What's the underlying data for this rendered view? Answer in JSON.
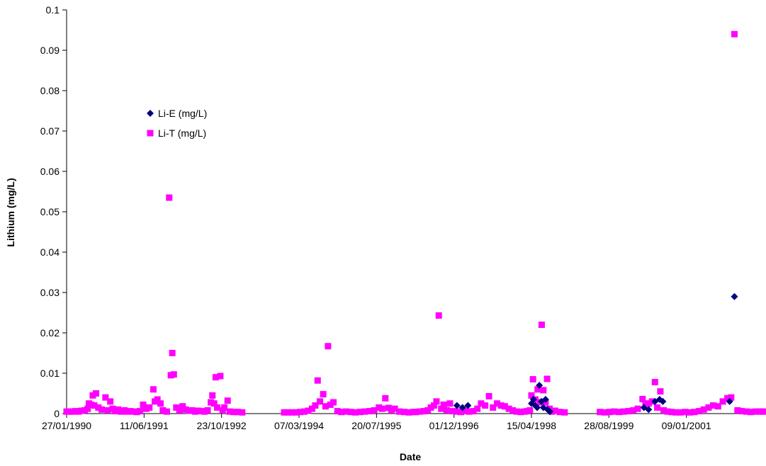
{
  "chart_data": {
    "type": "scatter",
    "title": "",
    "xlabel": "Date",
    "ylabel": "Lithium (mg/L)",
    "x_tick_labels": [
      "27/01/1990",
      "11/06/1991",
      "23/10/1992",
      "07/03/1994",
      "20/07/1995",
      "01/12/1996",
      "15/04/1998",
      "28/08/1999",
      "09/01/2001"
    ],
    "x_ticks": [
      "1990-01-27",
      "1991-06-11",
      "1992-10-23",
      "1994-03-07",
      "1995-07-20",
      "1996-12-01",
      "1998-04-15",
      "1999-08-28",
      "2001-01-09"
    ],
    "xlim": [
      "1990-01-27",
      "2002-05-24"
    ],
    "y_tick_labels": [
      "0",
      "0.01",
      "0.02",
      "0.03",
      "0.04",
      "0.05",
      "0.06",
      "0.07",
      "0.08",
      "0.09",
      "0.1"
    ],
    "ylim": [
      0,
      0.1
    ],
    "grid": false,
    "legend_position": "upper-left-inside",
    "series": [
      {
        "name": "Li-E (mg/L)",
        "color": "#000080",
        "marker": "diamond",
        "points": [
          [
            "1996-12-20",
            0.002
          ],
          [
            "1997-01-25",
            0.0015
          ],
          [
            "1997-03-01",
            0.002
          ],
          [
            "1998-04-15",
            0.0025
          ],
          [
            "1998-04-28",
            0.0035
          ],
          [
            "1998-05-10",
            0.002
          ],
          [
            "1998-05-22",
            0.0015
          ],
          [
            "1998-06-05",
            0.007
          ],
          [
            "1998-06-18",
            0.003
          ],
          [
            "1998-07-01",
            0.0015
          ],
          [
            "1998-07-15",
            0.0035
          ],
          [
            "1998-07-28",
            0.001
          ],
          [
            "1998-08-12",
            0.0005
          ],
          [
            "2000-04-10",
            0.0015
          ],
          [
            "2000-05-10",
            0.001
          ],
          [
            "2000-06-20",
            0.003
          ],
          [
            "2000-07-20",
            0.0035
          ],
          [
            "2000-08-10",
            0.003
          ],
          [
            "2001-10-15",
            0.003
          ],
          [
            "2001-11-15",
            0.029
          ]
        ]
      },
      {
        "name": "Li-T (mg/L)",
        "color": "#FF00FF",
        "marker": "square",
        "points": [
          [
            "1990-01-27",
            0.0005
          ],
          [
            "1990-02-15",
            0.0005
          ],
          [
            "1990-03-07",
            0.0005
          ],
          [
            "1990-03-26",
            0.0006
          ],
          [
            "1990-04-15",
            0.0005
          ],
          [
            "1990-05-04",
            0.0007
          ],
          [
            "1990-05-24",
            0.0008
          ],
          [
            "1990-06-12",
            0.0012
          ],
          [
            "1990-06-20",
            0.0025
          ],
          [
            "1990-07-05",
            0.0022
          ],
          [
            "1990-07-15",
            0.0045
          ],
          [
            "1990-07-25",
            0.002
          ],
          [
            "1990-08-05",
            0.005
          ],
          [
            "1990-08-20",
            0.0015
          ],
          [
            "1990-09-10",
            0.001
          ],
          [
            "1990-10-05",
            0.004
          ],
          [
            "1990-10-20",
            0.0008
          ],
          [
            "1990-11-05",
            0.003
          ],
          [
            "1990-11-20",
            0.0012
          ],
          [
            "1990-12-05",
            0.0006
          ],
          [
            "1990-12-25",
            0.001
          ],
          [
            "1991-01-15",
            0.0005
          ],
          [
            "1991-02-05",
            0.0008
          ],
          [
            "1991-02-25",
            0.0005
          ],
          [
            "1991-03-15",
            0.0006
          ],
          [
            "1991-04-05",
            0.0005
          ],
          [
            "1991-04-25",
            0.0004
          ],
          [
            "1991-05-15",
            0.0006
          ],
          [
            "1991-06-05",
            0.0022
          ],
          [
            "1991-06-25",
            0.0012
          ],
          [
            "1991-07-15",
            0.0015
          ],
          [
            "1991-08-10",
            0.006
          ],
          [
            "1991-08-20",
            0.003
          ],
          [
            "1991-09-05",
            0.0035
          ],
          [
            "1991-09-25",
            0.0025
          ],
          [
            "1991-10-10",
            0.0008
          ],
          [
            "1991-11-05",
            0.0005
          ],
          [
            "1991-11-20",
            0.0535
          ],
          [
            "1991-12-01",
            0.0095
          ],
          [
            "1991-12-10",
            0.015
          ],
          [
            "1991-12-20",
            0.0097
          ],
          [
            "1992-01-05",
            0.0015
          ],
          [
            "1992-01-25",
            0.0008
          ],
          [
            "1992-02-15",
            0.0018
          ],
          [
            "1992-03-05",
            0.001
          ],
          [
            "1992-03-25",
            0.0007
          ],
          [
            "1992-04-15",
            0.0008
          ],
          [
            "1992-05-05",
            0.0005
          ],
          [
            "1992-05-25",
            0.0007
          ],
          [
            "1992-06-15",
            0.0006
          ],
          [
            "1992-07-05",
            0.0005
          ],
          [
            "1992-07-25",
            0.0008
          ],
          [
            "1992-08-15",
            0.0028
          ],
          [
            "1992-08-25",
            0.0045
          ],
          [
            "1992-09-05",
            0.0025
          ],
          [
            "1992-09-15",
            0.009
          ],
          [
            "1992-09-25",
            0.0015
          ],
          [
            "1992-10-15",
            0.0093
          ],
          [
            "1992-10-30",
            0.0008
          ],
          [
            "1992-11-10",
            0.0015
          ],
          [
            "1992-12-01",
            0.0032
          ],
          [
            "1992-12-15",
            0.0005
          ],
          [
            "1993-01-10",
            0.0004
          ],
          [
            "1993-02-05",
            0.0004
          ],
          [
            "1993-03-05",
            0.0003
          ],
          [
            "1993-12-01",
            0.0003
          ],
          [
            "1993-12-25",
            0.0003
          ],
          [
            "1994-01-20",
            0.0003
          ],
          [
            "1994-02-15",
            0.0003
          ],
          [
            "1994-03-15",
            0.0004
          ],
          [
            "1994-04-10",
            0.0005
          ],
          [
            "1994-05-05",
            0.0007
          ],
          [
            "1994-05-30",
            0.0012
          ],
          [
            "1994-06-20",
            0.002
          ],
          [
            "1994-07-05",
            0.0082
          ],
          [
            "1994-07-20",
            0.003
          ],
          [
            "1994-08-10",
            0.0048
          ],
          [
            "1994-08-25",
            0.0018
          ],
          [
            "1994-09-10",
            0.0167
          ],
          [
            "1994-09-25",
            0.0022
          ],
          [
            "1994-10-15",
            0.0028
          ],
          [
            "1994-11-10",
            0.0006
          ],
          [
            "1994-12-05",
            0.0004
          ],
          [
            "1995-01-05",
            0.0005
          ],
          [
            "1995-02-05",
            0.0004
          ],
          [
            "1995-03-05",
            0.0003
          ],
          [
            "1995-04-05",
            0.0004
          ],
          [
            "1995-05-05",
            0.0005
          ],
          [
            "1995-06-05",
            0.0006
          ],
          [
            "1995-07-05",
            0.0008
          ],
          [
            "1995-08-05",
            0.0015
          ],
          [
            "1995-08-25",
            0.0012
          ],
          [
            "1995-09-15",
            0.0038
          ],
          [
            "1995-10-05",
            0.0014
          ],
          [
            "1995-10-25",
            0.0008
          ],
          [
            "1995-11-15",
            0.0012
          ],
          [
            "1995-12-15",
            0.0005
          ],
          [
            "1996-01-15",
            0.0004
          ],
          [
            "1996-02-15",
            0.0003
          ],
          [
            "1996-03-15",
            0.0004
          ],
          [
            "1996-03-30",
            0.0004
          ],
          [
            "1996-04-25",
            0.0005
          ],
          [
            "1996-05-20",
            0.0006
          ],
          [
            "1996-06-15",
            0.0008
          ],
          [
            "1996-07-05",
            0.0015
          ],
          [
            "1996-07-25",
            0.002
          ],
          [
            "1996-08-10",
            0.003
          ],
          [
            "1996-08-25",
            0.0243
          ],
          [
            "1996-09-10",
            0.0012
          ],
          [
            "1996-09-25",
            0.0022
          ],
          [
            "1996-10-15",
            0.0008
          ],
          [
            "1996-11-05",
            0.0025
          ],
          [
            "1996-11-25",
            0.0006
          ],
          [
            "1996-12-20",
            0.0005
          ],
          [
            "1997-01-15",
            0.0004
          ],
          [
            "1997-02-10",
            0.0006
          ],
          [
            "1997-03-10",
            0.0005
          ],
          [
            "1997-04-05",
            0.0006
          ],
          [
            "1997-05-01",
            0.0012
          ],
          [
            "1997-05-25",
            0.0025
          ],
          [
            "1997-06-20",
            0.002
          ],
          [
            "1997-07-15",
            0.0043
          ],
          [
            "1997-08-10",
            0.0015
          ],
          [
            "1997-09-05",
            0.0025
          ],
          [
            "1997-10-01",
            0.002
          ],
          [
            "1997-10-25",
            0.0018
          ],
          [
            "1997-11-20",
            0.0012
          ],
          [
            "1997-12-15",
            0.0008
          ],
          [
            "1998-01-10",
            0.0005
          ],
          [
            "1998-02-05",
            0.0004
          ],
          [
            "1998-03-01",
            0.0005
          ],
          [
            "1998-03-20",
            0.0006
          ],
          [
            "1998-04-05",
            0.0008
          ],
          [
            "1998-04-15",
            0.0045
          ],
          [
            "1998-04-25",
            0.0085
          ],
          [
            "1998-05-10",
            0.0035
          ],
          [
            "1998-05-25",
            0.006
          ],
          [
            "1998-06-10",
            0.0028
          ],
          [
            "1998-06-20",
            0.022
          ],
          [
            "1998-07-01",
            0.0058
          ],
          [
            "1998-07-15",
            0.0028
          ],
          [
            "1998-07-25",
            0.0086
          ],
          [
            "1998-08-10",
            0.0012
          ],
          [
            "1998-08-25",
            0.0005
          ],
          [
            "1998-09-15",
            0.0007
          ],
          [
            "1998-10-15",
            0.0004
          ],
          [
            "1998-11-15",
            0.0003
          ],
          [
            "1999-07-01",
            0.0004
          ],
          [
            "1999-08-01",
            0.0003
          ],
          [
            "1999-09-01",
            0.0004
          ],
          [
            "1999-10-01",
            0.0005
          ],
          [
            "1999-11-01",
            0.0004
          ],
          [
            "1999-12-01",
            0.0005
          ],
          [
            "2000-01-01",
            0.0006
          ],
          [
            "2000-02-01",
            0.0008
          ],
          [
            "2000-03-01",
            0.0012
          ],
          [
            "2000-04-01",
            0.0036
          ],
          [
            "2000-04-20",
            0.0025
          ],
          [
            "2000-05-10",
            0.0025
          ],
          [
            "2000-06-01",
            0.003
          ],
          [
            "2000-06-20",
            0.0078
          ],
          [
            "2000-07-05",
            0.0015
          ],
          [
            "2000-07-25",
            0.0055
          ],
          [
            "2000-08-15",
            0.0008
          ],
          [
            "2000-09-10",
            0.0005
          ],
          [
            "2000-10-05",
            0.0004
          ],
          [
            "2000-11-01",
            0.0003
          ],
          [
            "2000-12-01",
            0.0003
          ],
          [
            "2001-01-01",
            0.0004
          ],
          [
            "2001-02-01",
            0.0003
          ],
          [
            "2001-03-01",
            0.0004
          ],
          [
            "2001-04-01",
            0.0006
          ],
          [
            "2001-05-01",
            0.001
          ],
          [
            "2001-06-01",
            0.0015
          ],
          [
            "2001-07-01",
            0.002
          ],
          [
            "2001-08-01",
            0.0018
          ],
          [
            "2001-09-01",
            0.003
          ],
          [
            "2001-10-01",
            0.0038
          ],
          [
            "2001-10-25",
            0.004
          ],
          [
            "2001-11-15",
            0.094
          ],
          [
            "2001-12-05",
            0.0008
          ],
          [
            "2002-01-01",
            0.0006
          ],
          [
            "2002-02-01",
            0.0005
          ],
          [
            "2002-03-01",
            0.0004
          ],
          [
            "2002-04-01",
            0.0005
          ],
          [
            "2002-05-01",
            0.0005
          ],
          [
            "2002-05-20",
            0.0005
          ]
        ]
      }
    ]
  }
}
